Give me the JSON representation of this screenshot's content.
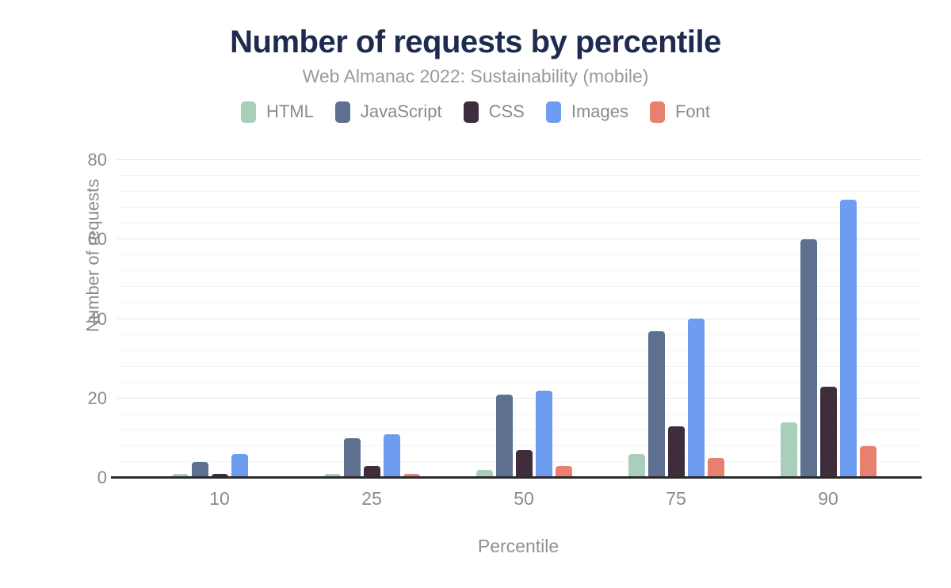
{
  "chart_data": {
    "type": "bar",
    "title": "Number of requests by percentile",
    "subtitle": "Web Almanac 2022: Sustainability (mobile)",
    "xlabel": "Percentile",
    "ylabel": "Number of requests",
    "categories": [
      "10",
      "25",
      "50",
      "75",
      "90"
    ],
    "series": [
      {
        "name": "HTML",
        "color": "#a9ceba",
        "values": [
          1,
          1,
          2,
          6,
          14
        ]
      },
      {
        "name": "JavaScript",
        "color": "#5d7090",
        "values": [
          4,
          10,
          21,
          37,
          60
        ]
      },
      {
        "name": "CSS",
        "color": "#3f2c3d",
        "values": [
          1,
          3,
          7,
          13,
          23
        ]
      },
      {
        "name": "Images",
        "color": "#6d9cf0",
        "values": [
          6,
          11,
          22,
          40,
          70
        ]
      },
      {
        "name": "Font",
        "color": "#e8806f",
        "values": [
          0,
          1,
          3,
          5,
          8
        ]
      }
    ],
    "ylim": [
      0,
      80
    ],
    "yticks": [
      0,
      20,
      40,
      60,
      80
    ],
    "minor_grid_step": 4,
    "grid": "on",
    "legend_position": "top",
    "colors": {
      "title_text": "#1e2b4e",
      "muted_text": "#8b8b8b",
      "axis_line": "#2b2b2b",
      "major_gridline": "#e7e7e7",
      "minor_gridline": "#f4f4f4",
      "background": "#ffffff"
    }
  }
}
